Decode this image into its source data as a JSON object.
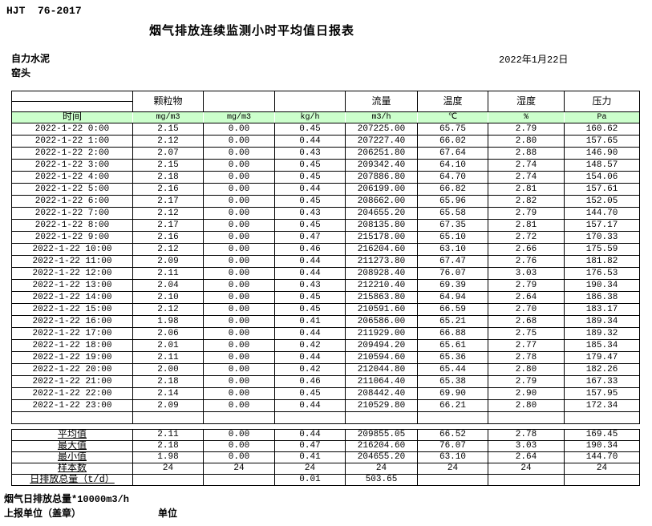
{
  "header": {
    "standard": "HJT  76-2017",
    "title": "烟气排放连续监测小时平均值日报表",
    "company": "自力水泥",
    "station": "窑头",
    "date": "2022年1月22日"
  },
  "table": {
    "time_label": "时间",
    "col_headers": [
      "颗粒物",
      "",
      "",
      "流量",
      "温度",
      "湿度",
      "压力"
    ],
    "units": [
      "mg/m3",
      "mg/m3",
      "kg/h",
      "m3/h",
      "℃",
      "%",
      "Pa"
    ],
    "rows": [
      {
        "time": "2022-1-22 0:00",
        "values": [
          "2.15",
          "0.00",
          "0.45",
          "207225.00",
          "65.75",
          "2.79",
          "160.62"
        ]
      },
      {
        "time": "2022-1-22 1:00",
        "values": [
          "2.12",
          "0.00",
          "0.44",
          "207227.40",
          "66.02",
          "2.80",
          "157.65"
        ]
      },
      {
        "time": "2022-1-22 2:00",
        "values": [
          "2.07",
          "0.00",
          "0.43",
          "206251.80",
          "67.64",
          "2.88",
          "146.90"
        ]
      },
      {
        "time": "2022-1-22 3:00",
        "values": [
          "2.15",
          "0.00",
          "0.45",
          "209342.40",
          "64.10",
          "2.74",
          "148.57"
        ]
      },
      {
        "time": "2022-1-22 4:00",
        "values": [
          "2.18",
          "0.00",
          "0.45",
          "207886.80",
          "64.70",
          "2.74",
          "154.06"
        ]
      },
      {
        "time": "2022-1-22 5:00",
        "values": [
          "2.16",
          "0.00",
          "0.44",
          "206199.00",
          "66.82",
          "2.81",
          "157.61"
        ]
      },
      {
        "time": "2022-1-22 6:00",
        "values": [
          "2.17",
          "0.00",
          "0.45",
          "208662.00",
          "65.96",
          "2.82",
          "152.05"
        ]
      },
      {
        "time": "2022-1-22 7:00",
        "values": [
          "2.12",
          "0.00",
          "0.43",
          "204655.20",
          "65.58",
          "2.79",
          "144.70"
        ]
      },
      {
        "time": "2022-1-22 8:00",
        "values": [
          "2.17",
          "0.00",
          "0.45",
          "208135.80",
          "67.35",
          "2.81",
          "157.17"
        ]
      },
      {
        "time": "2022-1-22 9:00",
        "values": [
          "2.16",
          "0.00",
          "0.47",
          "215178.00",
          "65.10",
          "2.72",
          "170.33"
        ]
      },
      {
        "time": "2022-1-22 10:00",
        "values": [
          "2.12",
          "0.00",
          "0.46",
          "216204.60",
          "63.10",
          "2.66",
          "175.59"
        ]
      },
      {
        "time": "2022-1-22 11:00",
        "values": [
          "2.09",
          "0.00",
          "0.44",
          "211273.80",
          "67.47",
          "2.76",
          "181.82"
        ]
      },
      {
        "time": "2022-1-22 12:00",
        "values": [
          "2.11",
          "0.00",
          "0.44",
          "208928.40",
          "76.07",
          "3.03",
          "176.53"
        ]
      },
      {
        "time": "2022-1-22 13:00",
        "values": [
          "2.04",
          "0.00",
          "0.43",
          "212210.40",
          "69.39",
          "2.79",
          "190.34"
        ]
      },
      {
        "time": "2022-1-22 14:00",
        "values": [
          "2.10",
          "0.00",
          "0.45",
          "215863.80",
          "64.94",
          "2.64",
          "186.38"
        ]
      },
      {
        "time": "2022-1-22 15:00",
        "values": [
          "2.12",
          "0.00",
          "0.45",
          "210591.60",
          "66.59",
          "2.70",
          "183.17"
        ]
      },
      {
        "time": "2022-1-22 16:00",
        "values": [
          "1.98",
          "0.00",
          "0.41",
          "206586.00",
          "65.21",
          "2.68",
          "189.34"
        ]
      },
      {
        "time": "2022-1-22 17:00",
        "values": [
          "2.06",
          "0.00",
          "0.44",
          "211929.00",
          "66.88",
          "2.75",
          "189.32"
        ]
      },
      {
        "time": "2022-1-22 18:00",
        "values": [
          "2.01",
          "0.00",
          "0.42",
          "209494.20",
          "65.61",
          "2.77",
          "185.34"
        ]
      },
      {
        "time": "2022-1-22 19:00",
        "values": [
          "2.11",
          "0.00",
          "0.44",
          "210594.60",
          "65.36",
          "2.78",
          "179.47"
        ]
      },
      {
        "time": "2022-1-22 20:00",
        "values": [
          "2.00",
          "0.00",
          "0.42",
          "212044.80",
          "65.44",
          "2.80",
          "182.26"
        ]
      },
      {
        "time": "2022-1-22 21:00",
        "values": [
          "2.18",
          "0.00",
          "0.46",
          "211064.40",
          "65.38",
          "2.79",
          "167.33"
        ]
      },
      {
        "time": "2022-1-22 22:00",
        "values": [
          "2.14",
          "0.00",
          "0.45",
          "208442.40",
          "69.90",
          "2.90",
          "157.95"
        ]
      },
      {
        "time": "2022-1-22 23:00",
        "values": [
          "2.09",
          "0.00",
          "0.44",
          "210529.80",
          "66.21",
          "2.80",
          "172.34"
        ]
      }
    ],
    "summary": [
      {
        "label": "平均值",
        "values": [
          "2.11",
          "0.00",
          "0.44",
          "209855.05",
          "66.52",
          "2.78",
          "169.45"
        ]
      },
      {
        "label": "最大值",
        "values": [
          "2.18",
          "0.00",
          "0.47",
          "216204.60",
          "76.07",
          "3.03",
          "190.34"
        ]
      },
      {
        "label": "最小值",
        "values": [
          "1.98",
          "0.00",
          "0.41",
          "204655.20",
          "63.10",
          "2.64",
          "144.70"
        ]
      },
      {
        "label": "样本数",
        "values": [
          "24",
          "24",
          "24",
          "24",
          "24",
          "24",
          "24"
        ]
      },
      {
        "label": "日排放总量（t/d）",
        "values": [
          "",
          "",
          "0.01",
          "503.65",
          "",
          "",
          ""
        ]
      }
    ]
  },
  "footer": {
    "note": "烟气日排放总量*10000m3/h",
    "report_unit_label": "上报单位（盖章）",
    "unit_label": "单位"
  },
  "colors": {
    "header_green": "#ccffcc"
  }
}
